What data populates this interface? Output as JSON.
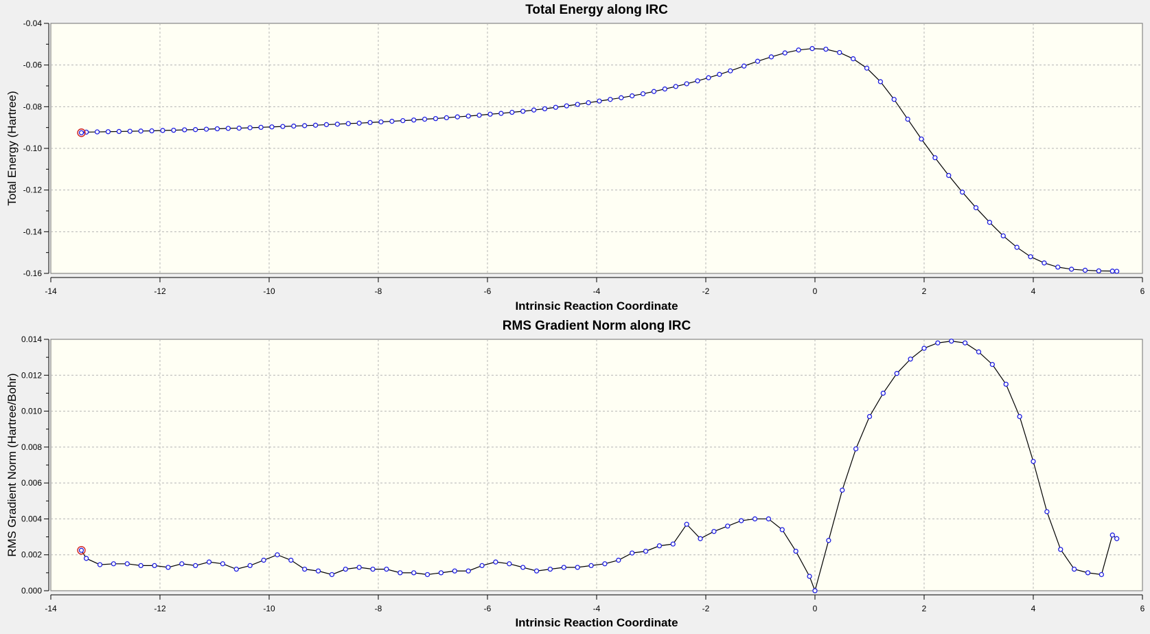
{
  "chart_data": [
    {
      "type": "line",
      "title": "Total Energy along IRC",
      "xlabel": "Intrinsic Reaction Coordinate",
      "ylabel": "Total Energy (Hartree)",
      "xlim": [
        -14,
        6
      ],
      "ylim": [
        -0.16,
        -0.04
      ],
      "xticks": [
        "-14",
        "-12",
        "-10",
        "-8",
        "-6",
        "-4",
        "-2",
        "0",
        "2",
        "4",
        "6"
      ],
      "yticks": [
        "-0.04",
        "-0.06",
        "-0.08",
        "-0.10",
        "-0.12",
        "-0.14",
        "-0.16"
      ],
      "grid": true,
      "highlight_index": 0,
      "x": [
        -13.44,
        -13.35,
        -13.15,
        -12.95,
        -12.75,
        -12.55,
        -12.35,
        -12.15,
        -11.95,
        -11.75,
        -11.55,
        -11.35,
        -11.15,
        -10.95,
        -10.75,
        -10.55,
        -10.35,
        -10.15,
        -9.95,
        -9.75,
        -9.55,
        -9.35,
        -9.15,
        -8.95,
        -8.75,
        -8.55,
        -8.35,
        -8.15,
        -7.95,
        -7.75,
        -7.55,
        -7.35,
        -7.15,
        -6.95,
        -6.75,
        -6.55,
        -6.35,
        -6.15,
        -5.95,
        -5.75,
        -5.55,
        -5.35,
        -5.15,
        -4.95,
        -4.75,
        -4.55,
        -4.35,
        -4.15,
        -3.95,
        -3.75,
        -3.55,
        -3.35,
        -3.15,
        -2.95,
        -2.75,
        -2.55,
        -2.35,
        -2.15,
        -1.95,
        -1.75,
        -1.55,
        -1.3,
        -1.05,
        -0.8,
        -0.55,
        -0.3,
        -0.05,
        0.2,
        0.45,
        0.7,
        0.95,
        1.2,
        1.45,
        1.7,
        1.95,
        2.2,
        2.45,
        2.7,
        2.95,
        3.2,
        3.45,
        3.7,
        3.95,
        4.2,
        4.45,
        4.7,
        4.95,
        5.2,
        5.45,
        5.53
      ],
      "y": [
        -0.0925,
        -0.0922,
        -0.0921,
        -0.092,
        -0.0919,
        -0.0918,
        -0.0917,
        -0.0916,
        -0.0914,
        -0.0913,
        -0.0911,
        -0.091,
        -0.0908,
        -0.0906,
        -0.0904,
        -0.0903,
        -0.0901,
        -0.0899,
        -0.0897,
        -0.0895,
        -0.0893,
        -0.0891,
        -0.0889,
        -0.0886,
        -0.0884,
        -0.0881,
        -0.0879,
        -0.0876,
        -0.0873,
        -0.087,
        -0.0867,
        -0.0864,
        -0.086,
        -0.0857,
        -0.0853,
        -0.0849,
        -0.0845,
        -0.0841,
        -0.0836,
        -0.0832,
        -0.0827,
        -0.0822,
        -0.0816,
        -0.081,
        -0.0803,
        -0.0796,
        -0.0789,
        -0.0781,
        -0.0773,
        -0.0765,
        -0.0757,
        -0.0748,
        -0.0738,
        -0.0727,
        -0.0715,
        -0.0703,
        -0.069,
        -0.0676,
        -0.0661,
        -0.0645,
        -0.0628,
        -0.0605,
        -0.0582,
        -0.0561,
        -0.0542,
        -0.0528,
        -0.0521,
        -0.0524,
        -0.054,
        -0.057,
        -0.0615,
        -0.068,
        -0.0765,
        -0.086,
        -0.0955,
        -0.1045,
        -0.113,
        -0.121,
        -0.1285,
        -0.1355,
        -0.142,
        -0.1475,
        -0.152,
        -0.155,
        -0.157,
        -0.158,
        -0.1585,
        -0.1588,
        -0.1589,
        -0.159
      ]
    },
    {
      "type": "line",
      "title": "RMS Gradient Norm along IRC",
      "xlabel": "Intrinsic Reaction Coordinate",
      "ylabel": "RMS Gradient Norm (Hartree/Bohr)",
      "xlim": [
        -14,
        6
      ],
      "ylim": [
        0,
        0.014
      ],
      "xticks": [
        "-14",
        "-12",
        "-10",
        "-8",
        "-6",
        "-4",
        "-2",
        "0",
        "2",
        "4",
        "6"
      ],
      "yticks": [
        "0.014",
        "0.012",
        "0.010",
        "0.008",
        "0.006",
        "0.004",
        "0.002",
        "0.000"
      ],
      "grid": true,
      "highlight_index": 0,
      "x": [
        -13.44,
        -13.35,
        -13.1,
        -12.85,
        -12.6,
        -12.35,
        -12.1,
        -11.85,
        -11.6,
        -11.35,
        -11.1,
        -10.85,
        -10.6,
        -10.35,
        -10.1,
        -9.85,
        -9.6,
        -9.35,
        -9.1,
        -8.85,
        -8.6,
        -8.35,
        -8.1,
        -7.85,
        -7.6,
        -7.35,
        -7.1,
        -6.85,
        -6.6,
        -6.35,
        -6.1,
        -5.85,
        -5.6,
        -5.35,
        -5.1,
        -4.85,
        -4.6,
        -4.35,
        -4.1,
        -3.85,
        -3.6,
        -3.35,
        -3.1,
        -2.85,
        -2.6,
        -2.35,
        -2.1,
        -1.85,
        -1.6,
        -1.35,
        -1.1,
        -0.85,
        -0.6,
        -0.35,
        -0.1,
        0.0,
        0.25,
        0.5,
        0.75,
        1.0,
        1.25,
        1.5,
        1.75,
        2.0,
        2.25,
        2.5,
        2.75,
        3.0,
        3.25,
        3.5,
        3.75,
        4.0,
        4.25,
        4.5,
        4.75,
        5.0,
        5.25,
        5.45,
        5.53
      ],
      "y": [
        0.00225,
        0.0018,
        0.00145,
        0.0015,
        0.0015,
        0.0014,
        0.0014,
        0.0013,
        0.0015,
        0.0014,
        0.0016,
        0.0015,
        0.0012,
        0.0014,
        0.0017,
        0.002,
        0.0017,
        0.0012,
        0.0011,
        0.0009,
        0.0012,
        0.0013,
        0.0012,
        0.0012,
        0.001,
        0.001,
        0.0009,
        0.001,
        0.0011,
        0.0011,
        0.0014,
        0.0016,
        0.0015,
        0.0013,
        0.0011,
        0.0012,
        0.0013,
        0.0013,
        0.0014,
        0.0015,
        0.0017,
        0.0021,
        0.0022,
        0.0025,
        0.0026,
        0.0037,
        0.0029,
        0.0033,
        0.0036,
        0.0039,
        0.004,
        0.004,
        0.0034,
        0.0022,
        0.0008,
        0.0,
        0.0028,
        0.0056,
        0.0079,
        0.0097,
        0.011,
        0.0121,
        0.0129,
        0.0135,
        0.0138,
        0.0139,
        0.0138,
        0.0133,
        0.0126,
        0.0115,
        0.0097,
        0.0072,
        0.0044,
        0.0023,
        0.0012,
        0.001,
        0.0009,
        0.0031,
        0.0029
      ]
    }
  ]
}
